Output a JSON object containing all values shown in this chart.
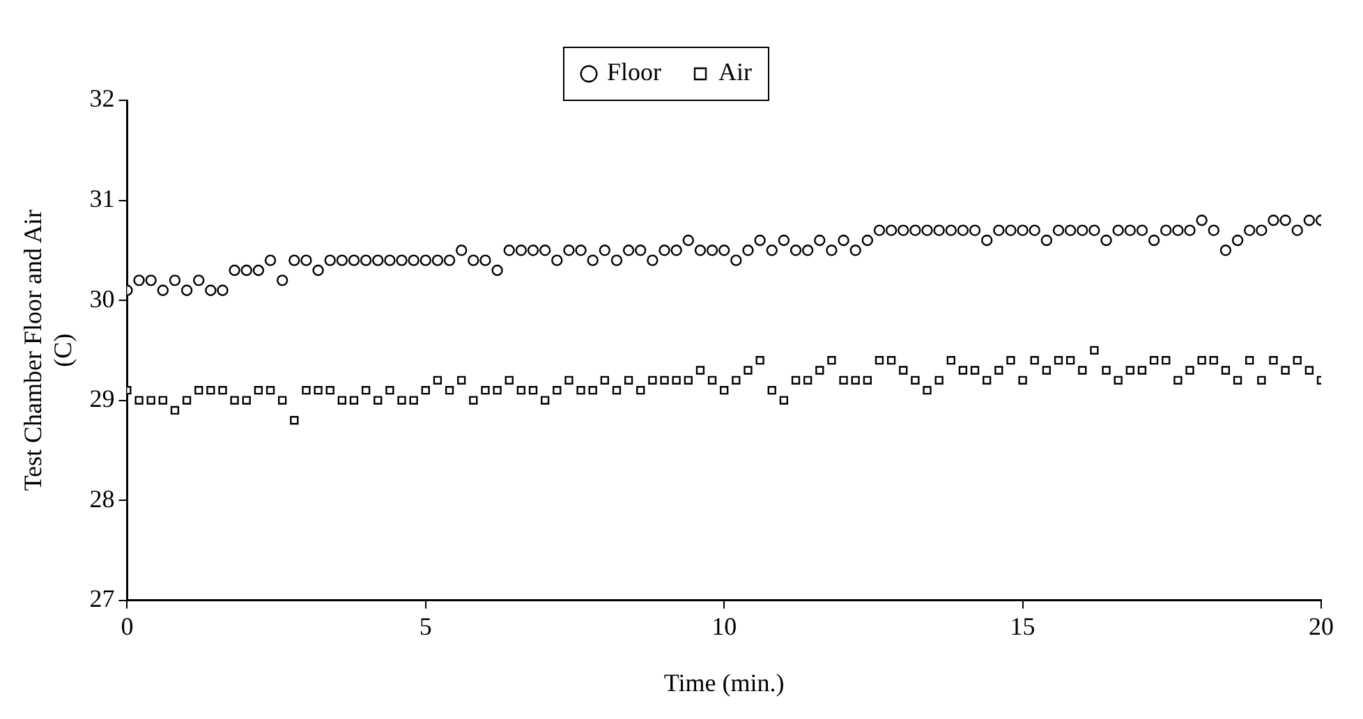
{
  "chart_data": {
    "type": "scatter",
    "xlabel": "Time (min.)",
    "ylabel": "Test Chamber Floor and Air (C)",
    "legend": "top",
    "grid": false,
    "xlim": [
      0,
      20
    ],
    "xticks": [
      0,
      5,
      10,
      15,
      20
    ],
    "ylim": [
      27,
      32
    ],
    "yticks": [
      27,
      28,
      29,
      30,
      31,
      32
    ],
    "x": [
      0,
      0.2,
      0.4,
      0.6,
      0.8,
      1,
      1.2,
      1.4,
      1.6,
      1.8,
      2,
      2.2,
      2.4,
      2.6,
      2.8,
      3,
      3.2,
      3.4,
      3.6,
      3.8,
      4,
      4.2,
      4.4,
      4.6,
      4.8,
      5,
      5.2,
      5.4,
      5.6,
      5.8,
      6,
      6.2,
      6.4,
      6.6,
      6.8,
      7,
      7.2,
      7.4,
      7.6,
      7.8,
      8,
      8.2,
      8.4,
      8.6,
      8.8,
      9,
      9.2,
      9.4,
      9.6,
      9.8,
      10,
      10.2,
      10.4,
      10.6,
      10.8,
      11,
      11.2,
      11.4,
      11.6,
      11.8,
      12,
      12.2,
      12.4,
      12.6,
      12.8,
      13,
      13.2,
      13.4,
      13.6,
      13.8,
      14,
      14.2,
      14.4,
      14.6,
      14.8,
      15,
      15.2,
      15.4,
      15.6,
      15.8,
      16,
      16.2,
      16.4,
      16.6,
      16.8,
      17,
      17.2,
      17.4,
      17.6,
      17.8,
      18,
      18.2,
      18.4,
      18.6,
      18.8,
      19,
      19.2,
      19.4,
      19.6,
      19.8,
      20
    ],
    "series": [
      {
        "name": "Floor",
        "color": "#000000",
        "marker": "circle",
        "values": [
          30.1,
          30.2,
          30.2,
          30.1,
          30.2,
          30.1,
          30.2,
          30.1,
          30.1,
          30.3,
          30.3,
          30.3,
          30.4,
          30.2,
          30.4,
          30.4,
          30.3,
          30.4,
          30.4,
          30.4,
          30.4,
          30.4,
          30.4,
          30.4,
          30.4,
          30.4,
          30.4,
          30.4,
          30.5,
          30.4,
          30.4,
          30.3,
          30.5,
          30.5,
          30.5,
          30.5,
          30.4,
          30.5,
          30.5,
          30.4,
          30.5,
          30.4,
          30.5,
          30.5,
          30.4,
          30.5,
          30.5,
          30.6,
          30.5,
          30.5,
          30.5,
          30.4,
          30.5,
          30.6,
          30.5,
          30.6,
          30.5,
          30.5,
          30.6,
          30.5,
          30.6,
          30.5,
          30.6,
          30.7,
          30.7,
          30.7,
          30.7,
          30.7,
          30.7,
          30.7,
          30.7,
          30.7,
          30.6,
          30.7,
          30.7,
          30.7,
          30.7,
          30.6,
          30.7,
          30.7,
          30.7,
          30.7,
          30.6,
          30.7,
          30.7,
          30.7,
          30.6,
          30.7,
          30.7,
          30.7,
          30.8,
          30.7,
          30.5,
          30.6,
          30.7,
          30.7,
          30.8,
          30.8,
          30.7,
          30.8,
          30.8
        ]
      },
      {
        "name": "Air",
        "color": "#000000",
        "marker": "square",
        "values": [
          29.1,
          29.0,
          29.0,
          29.0,
          28.9,
          29.0,
          29.1,
          29.1,
          29.1,
          29.0,
          29.0,
          29.1,
          29.1,
          29.0,
          28.8,
          29.1,
          29.1,
          29.1,
          29.0,
          29.0,
          29.1,
          29.0,
          29.1,
          29.0,
          29.0,
          29.1,
          29.2,
          29.1,
          29.2,
          29.0,
          29.1,
          29.1,
          29.2,
          29.1,
          29.1,
          29.0,
          29.1,
          29.2,
          29.1,
          29.1,
          29.2,
          29.1,
          29.2,
          29.1,
          29.2,
          29.2,
          29.2,
          29.2,
          29.3,
          29.2,
          29.1,
          29.2,
          29.3,
          29.4,
          29.1,
          29.0,
          29.2,
          29.2,
          29.3,
          29.4,
          29.2,
          29.2,
          29.2,
          29.4,
          29.4,
          29.3,
          29.2,
          29.1,
          29.2,
          29.4,
          29.3,
          29.3,
          29.2,
          29.3,
          29.4,
          29.2,
          29.4,
          29.3,
          29.4,
          29.4,
          29.3,
          29.5,
          29.3,
          29.2,
          29.3,
          29.3,
          29.4,
          29.4,
          29.2,
          29.3,
          29.4,
          29.4,
          29.3,
          29.2,
          29.4,
          29.2,
          29.4,
          29.3,
          29.4,
          29.3,
          29.2
        ]
      }
    ]
  }
}
